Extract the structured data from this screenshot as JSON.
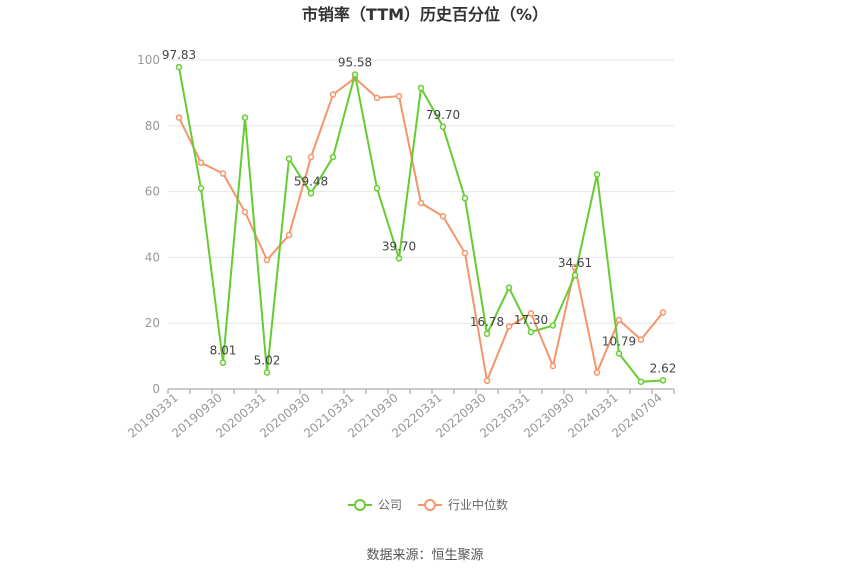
{
  "chart_data": {
    "type": "line",
    "title": "市销率（TTM）历史百分位（%）",
    "xlabel": "",
    "ylabel": "",
    "ylim": [
      0,
      100
    ],
    "yticks": [
      0,
      20,
      40,
      60,
      80,
      100
    ],
    "grid": true,
    "legend_position": "bottom",
    "x": [
      "20190331",
      "20190630",
      "20190930",
      "20191231",
      "20200331",
      "20200630",
      "20200930",
      "20201231",
      "20210331",
      "20210630",
      "20210930",
      "20211231",
      "20220331",
      "20220630",
      "20220930",
      "20221231",
      "20230331",
      "20230630",
      "20230930",
      "20231231",
      "20240331",
      "20240630",
      "20240704"
    ],
    "xtick_labels": [
      "20190331",
      "20190930",
      "20200331",
      "20200930",
      "20210331",
      "20210930",
      "20220331",
      "20220930",
      "20230331",
      "20230930",
      "20240331",
      "20240704"
    ],
    "series": [
      {
        "name": "公司",
        "color": "#66cc33",
        "values": [
          97.83,
          61.0,
          8.01,
          82.5,
          5.02,
          70.0,
          59.48,
          70.5,
          95.58,
          61.0,
          39.7,
          91.5,
          79.7,
          58.0,
          16.78,
          30.8,
          17.3,
          19.3,
          34.61,
          65.2,
          10.79,
          2.2,
          2.62
        ]
      },
      {
        "name": "行业中位数",
        "color": "#f4956a",
        "values": [
          82.5,
          68.8,
          65.5,
          53.8,
          39.2,
          46.8,
          70.5,
          89.5,
          94.5,
          88.5,
          89.0,
          56.5,
          52.5,
          41.3,
          2.5,
          19.0,
          23.0,
          7.0,
          37.0,
          5.0,
          21.0,
          15.0,
          23.3
        ]
      }
    ],
    "data_labels": [
      {
        "series": 0,
        "index": 0,
        "text": "97.83"
      },
      {
        "series": 0,
        "index": 2,
        "text": "8.01"
      },
      {
        "series": 0,
        "index": 4,
        "text": "5.02"
      },
      {
        "series": 0,
        "index": 6,
        "text": "59.48"
      },
      {
        "series": 0,
        "index": 8,
        "text": "95.58"
      },
      {
        "series": 0,
        "index": 10,
        "text": "39.70"
      },
      {
        "series": 0,
        "index": 12,
        "text": "79.70"
      },
      {
        "series": 0,
        "index": 14,
        "text": "16.78"
      },
      {
        "series": 0,
        "index": 16,
        "text": "17.30"
      },
      {
        "series": 0,
        "index": 18,
        "text": "34.61"
      },
      {
        "series": 0,
        "index": 20,
        "text": "10.79"
      },
      {
        "series": 0,
        "index": 22,
        "text": "2.62"
      }
    ]
  },
  "source_text": "数据来源：恒生聚源"
}
